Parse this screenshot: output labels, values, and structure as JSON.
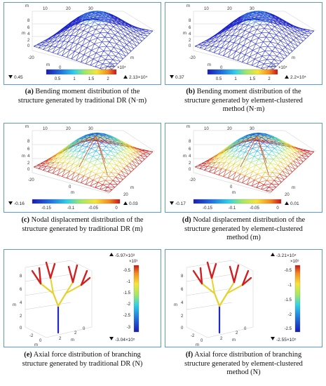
{
  "panels": [
    {
      "id": "a",
      "min_label": "0.45",
      "max_label": "2.13×10⁴",
      "colorbar_ticks": [
        "0.5",
        "1",
        "1.5",
        "2"
      ],
      "colorbar_exp": "×10⁴",
      "axis_ticks_top": [
        "10",
        "20",
        "30"
      ],
      "axis_ticks_left": [
        "8",
        "6",
        "4",
        "2",
        "0"
      ],
      "axis_ticks_bottom_left": [
        "-20",
        "0"
      ],
      "axis_ticks_right": [
        "20"
      ],
      "axis_unit": "m",
      "caption_letter": "(a)",
      "caption": [
        " Bending moment distribution of the",
        "structure generated by traditional DR (N·m)"
      ]
    },
    {
      "id": "b",
      "min_label": "0.37",
      "max_label": "2.2×10⁴",
      "colorbar_ticks": [
        "0.5",
        "1",
        "1.5",
        "2"
      ],
      "colorbar_exp": "×10⁴",
      "axis_ticks_top": [
        "10",
        "20",
        "30"
      ],
      "axis_ticks_left": [
        "8",
        "6",
        "4",
        "2",
        "0"
      ],
      "axis_ticks_bottom_left": [
        "-20",
        "0"
      ],
      "axis_ticks_right": [
        "20"
      ],
      "axis_unit": "m",
      "caption_letter": "(b)",
      "caption": [
        " Bending moment distribution of the",
        "structure generated by element-clustered",
        "method (N·m)"
      ]
    },
    {
      "id": "c",
      "min_label": "-0.16",
      "max_label": "0.03",
      "colorbar_ticks": [
        "-0.15",
        "-0.1",
        "-0.05",
        "0"
      ],
      "axis_ticks_top": [
        "10",
        "20",
        "30"
      ],
      "axis_ticks_left": [
        "8",
        "6",
        "4",
        "2",
        "0"
      ],
      "axis_ticks_bottom_left": [
        "-20",
        "0"
      ],
      "axis_ticks_right": [
        "20"
      ],
      "axis_unit": "m",
      "caption_letter": "(c)",
      "caption": [
        " Nodal displacement distribution of the",
        "structure generated by traditional DR (m)"
      ]
    },
    {
      "id": "d",
      "min_label": "-0.17",
      "max_label": "0.01",
      "colorbar_ticks": [
        "-0.15",
        "-0.1",
        "-0.05",
        "0"
      ],
      "axis_ticks_top": [
        "10",
        "20",
        "30"
      ],
      "axis_ticks_left": [
        "8",
        "6",
        "4",
        "2",
        "0"
      ],
      "axis_ticks_bottom_left": [
        "-20",
        "0"
      ],
      "axis_ticks_right": [
        "20"
      ],
      "axis_unit": "m",
      "caption_letter": "(d)",
      "caption": [
        " Nodal displacement distribution of the",
        "structure generated by element-clustered",
        "method (m)"
      ]
    },
    {
      "id": "e",
      "max_label": "-5.97×10³",
      "min_label": "-3.04×10⁵",
      "colorbar_exp": "×10⁵",
      "colorbar_ticks": [
        "-0.5",
        "-1",
        "-1.5",
        "-2",
        "-2.5",
        "-3"
      ],
      "axis_ticks_left": [
        "8",
        "6",
        "4",
        "2",
        "0"
      ],
      "axis_ticks_bottom": [
        "-2",
        "0",
        "2",
        "2",
        "0"
      ],
      "axis_unit": "m",
      "caption_letter": "(e)",
      "caption": [
        " Axial force distribution of branching",
        "structure generated by traditional DR (N)"
      ]
    },
    {
      "id": "f",
      "max_label": "-3.21×10⁴",
      "min_label": "-2.55×10⁵",
      "colorbar_exp": "×10⁵",
      "colorbar_ticks": [
        "-0.5",
        "-1",
        "-1.5",
        "-2",
        "-2.5"
      ],
      "axis_ticks_left": [
        "8",
        "6",
        "4",
        "2",
        "0"
      ],
      "axis_ticks_bottom": [
        "-2",
        "0",
        "2",
        "2",
        "0"
      ],
      "axis_unit": "m",
      "caption_letter": "(f)",
      "caption": [
        " Axial force distribution of branching",
        "structure generated by element-clustered",
        "method (N)"
      ]
    }
  ]
}
